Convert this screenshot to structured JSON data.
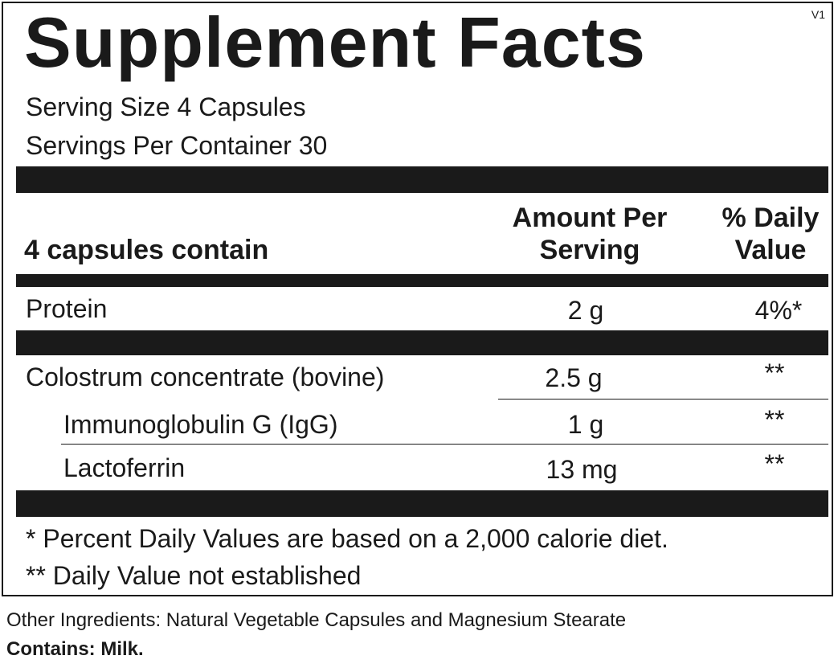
{
  "panel": {
    "title": "Supplement Facts",
    "version": "V1",
    "serving_size": "Serving Size 4 Capsules",
    "servings_per_container": "Servings Per Container  30"
  },
  "table": {
    "headers": {
      "label": "4 capsules contain",
      "amount_line1": "Amount Per",
      "amount_line2": "Serving",
      "dv_line1": "% Daily",
      "dv_line2": "Value"
    },
    "rows": [
      {
        "name": "Protein",
        "amount": "2 g",
        "dv": "4%*"
      },
      {
        "name": "Colostrum concentrate (bovine)",
        "amount": "2.5 g",
        "dv": "**"
      },
      {
        "name": "Immunoglobulin G (IgG)",
        "amount": "1 g",
        "dv": "**"
      },
      {
        "name": "Lactoferrin",
        "amount": "13 mg",
        "dv": "**"
      }
    ]
  },
  "footnotes": {
    "note1": "* Percent Daily Values are based on a 2,000 calorie diet.",
    "note2": "** Daily Value not established"
  },
  "other": {
    "ingredients": "Other Ingredients: Natural Vegetable Capsules and Magnesium Stearate",
    "contains": "Contains: Milk."
  }
}
